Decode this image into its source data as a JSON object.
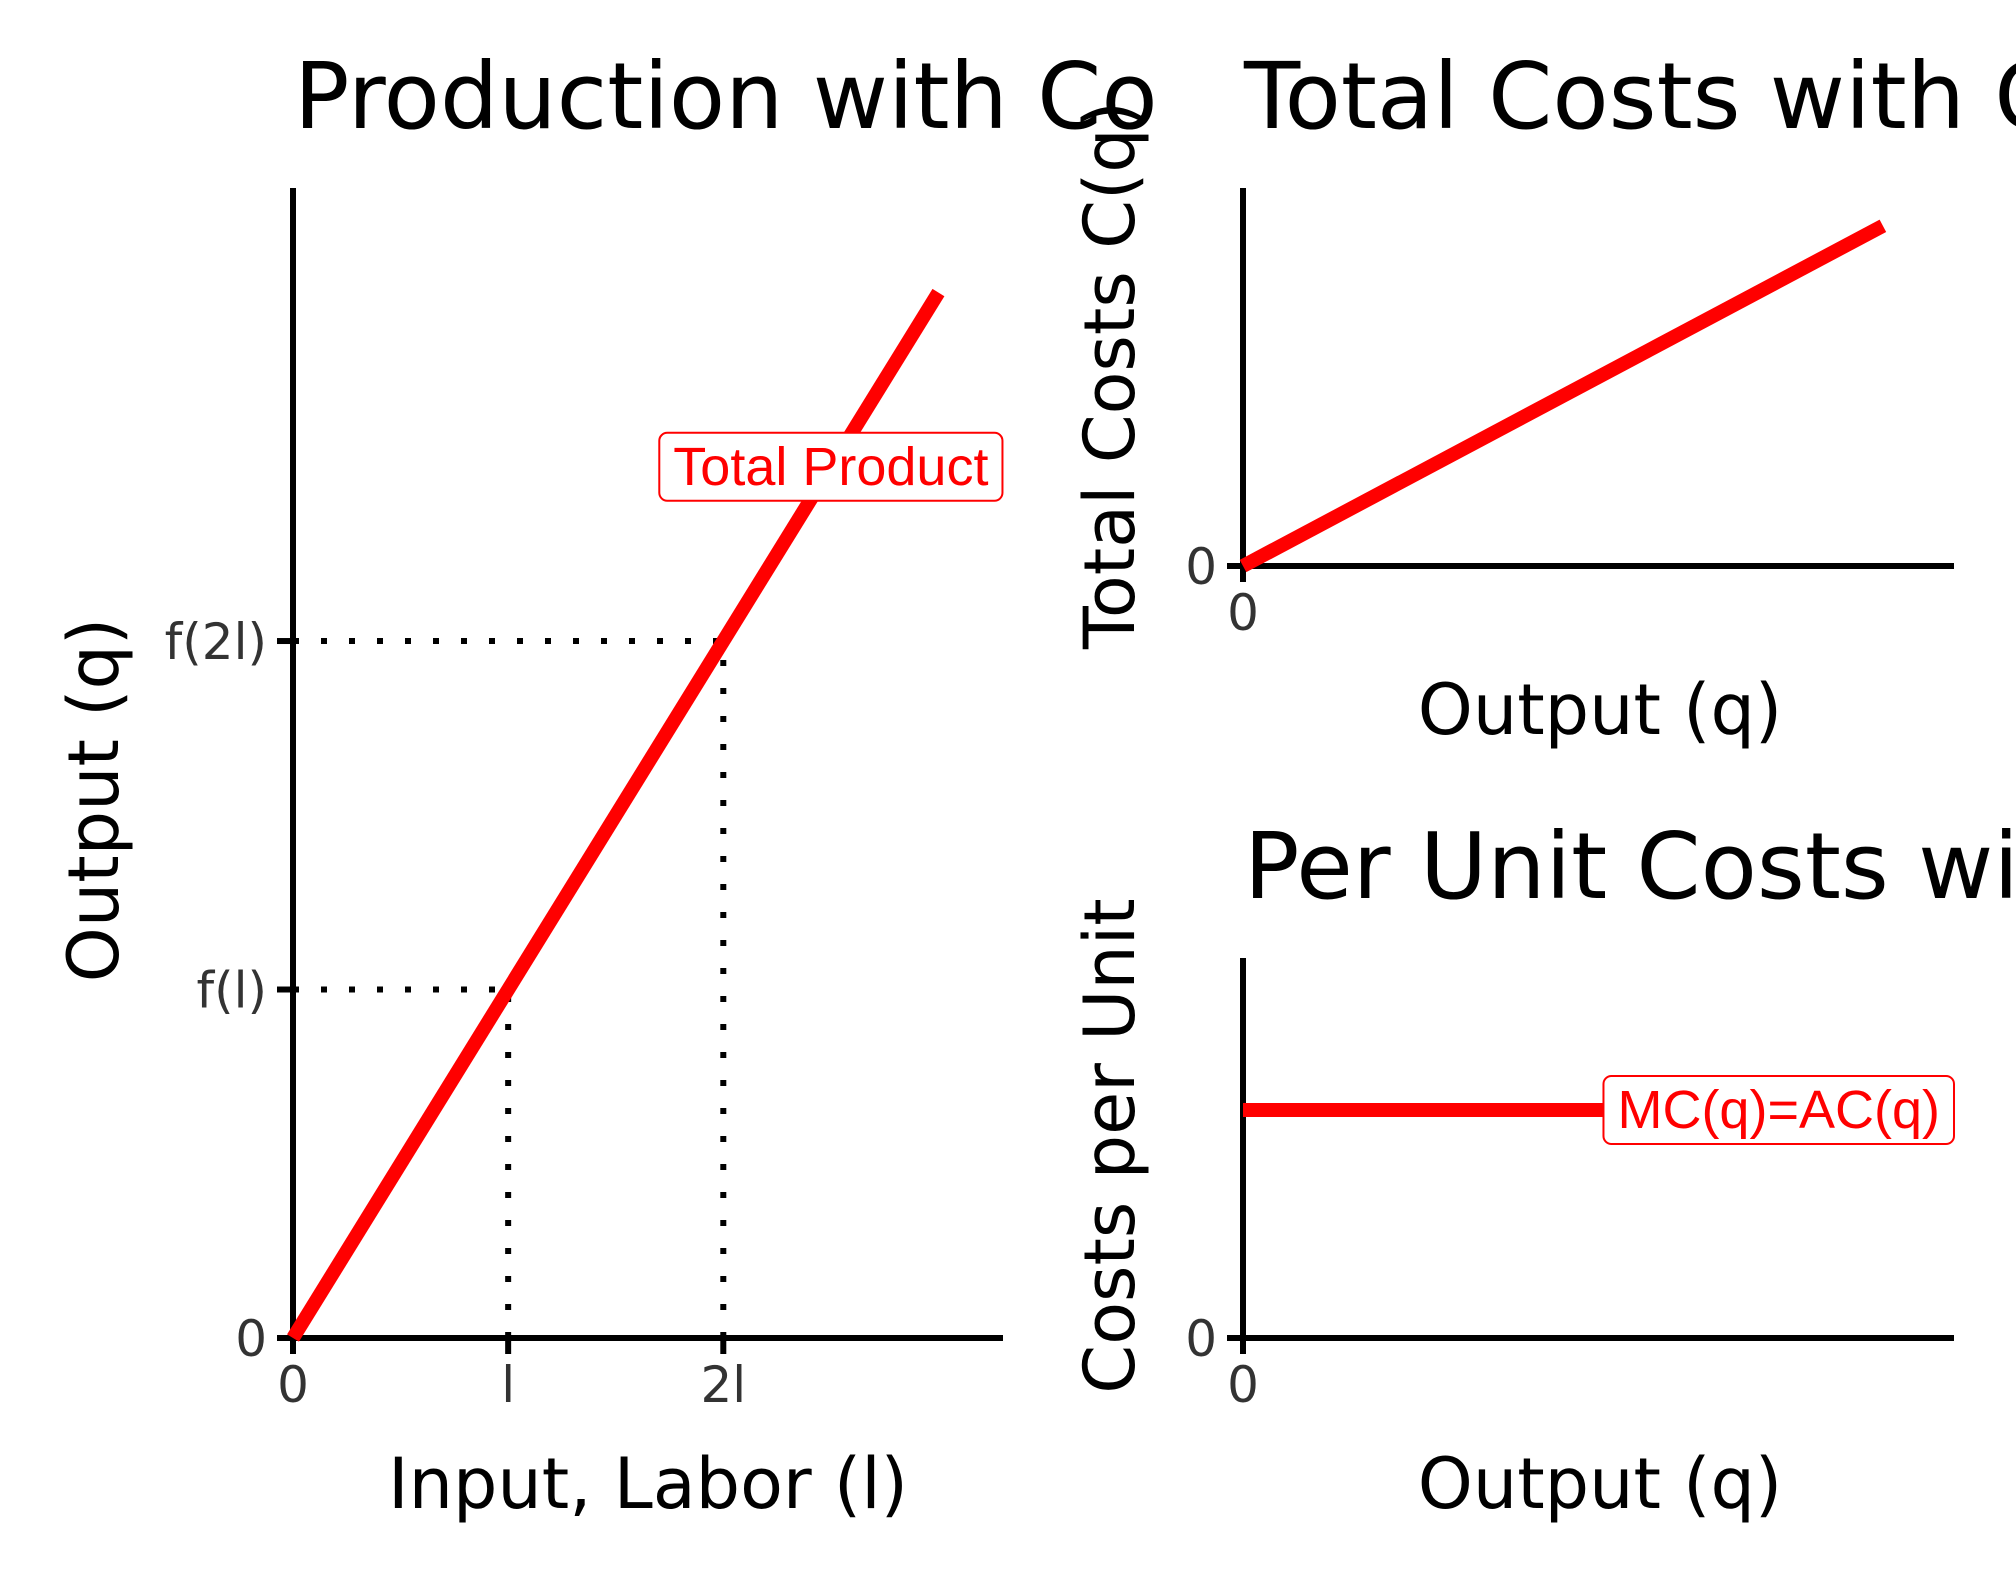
{
  "chart_data": [
    {
      "type": "line",
      "title": "Production with Co",
      "xlabel": "Input, Labor (l)",
      "ylabel": "Output (q)",
      "xlim": [
        0,
        3.3
      ],
      "ylim": [
        0,
        3.3
      ],
      "x_ticks": [
        {
          "value": 0,
          "label": "0"
        },
        {
          "value": 1,
          "label": "l"
        },
        {
          "value": 2,
          "label": "2l"
        }
      ],
      "y_ticks": [
        {
          "value": 0,
          "label": "0"
        },
        {
          "value": 1,
          "label": "f(l)"
        },
        {
          "value": 2,
          "label": "f(2l)"
        }
      ],
      "series": [
        {
          "name": "Total Product",
          "x": [
            0,
            3
          ],
          "y": [
            0,
            3
          ]
        }
      ],
      "guides": [
        {
          "from": [
            0,
            1
          ],
          "to": [
            1,
            1
          ]
        },
        {
          "from": [
            1,
            0
          ],
          "to": [
            1,
            1
          ]
        },
        {
          "from": [
            0,
            2
          ],
          "to": [
            2,
            2
          ]
        },
        {
          "from": [
            2,
            0
          ],
          "to": [
            2,
            2
          ]
        }
      ],
      "annotations": [
        {
          "text": "Total Product",
          "x": 2.5,
          "y": 2.5
        }
      ],
      "grid": false
    },
    {
      "type": "line",
      "title": "Total Costs with Cor",
      "xlabel": "Output (q)",
      "ylabel": "Total Costs C(q)",
      "xlim": [
        0,
        10
      ],
      "ylim": [
        0,
        10
      ],
      "x_ticks": [
        {
          "value": 0,
          "label": "0"
        }
      ],
      "y_ticks": [
        {
          "value": 0,
          "label": "0"
        }
      ],
      "series": [
        {
          "x": [
            0,
            9
          ],
          "y": [
            0,
            9
          ]
        }
      ],
      "grid": false
    },
    {
      "type": "line",
      "title": "Per Unit Costs with C",
      "xlabel": "Output (q)",
      "ylabel": "Costs per Unit",
      "xlim": [
        0,
        10
      ],
      "ylim": [
        0,
        10
      ],
      "x_ticks": [
        {
          "value": 0,
          "label": "0"
        }
      ],
      "y_ticks": [
        {
          "value": 0,
          "label": "0"
        }
      ],
      "series": [
        {
          "name": "MC(q)=AC(q)",
          "x": [
            0,
            10
          ],
          "y": [
            6,
            6
          ]
        }
      ],
      "annotations": [
        {
          "text": "MC(q)=AC(q)",
          "x": 10,
          "y": 6
        }
      ],
      "grid": false
    }
  ]
}
